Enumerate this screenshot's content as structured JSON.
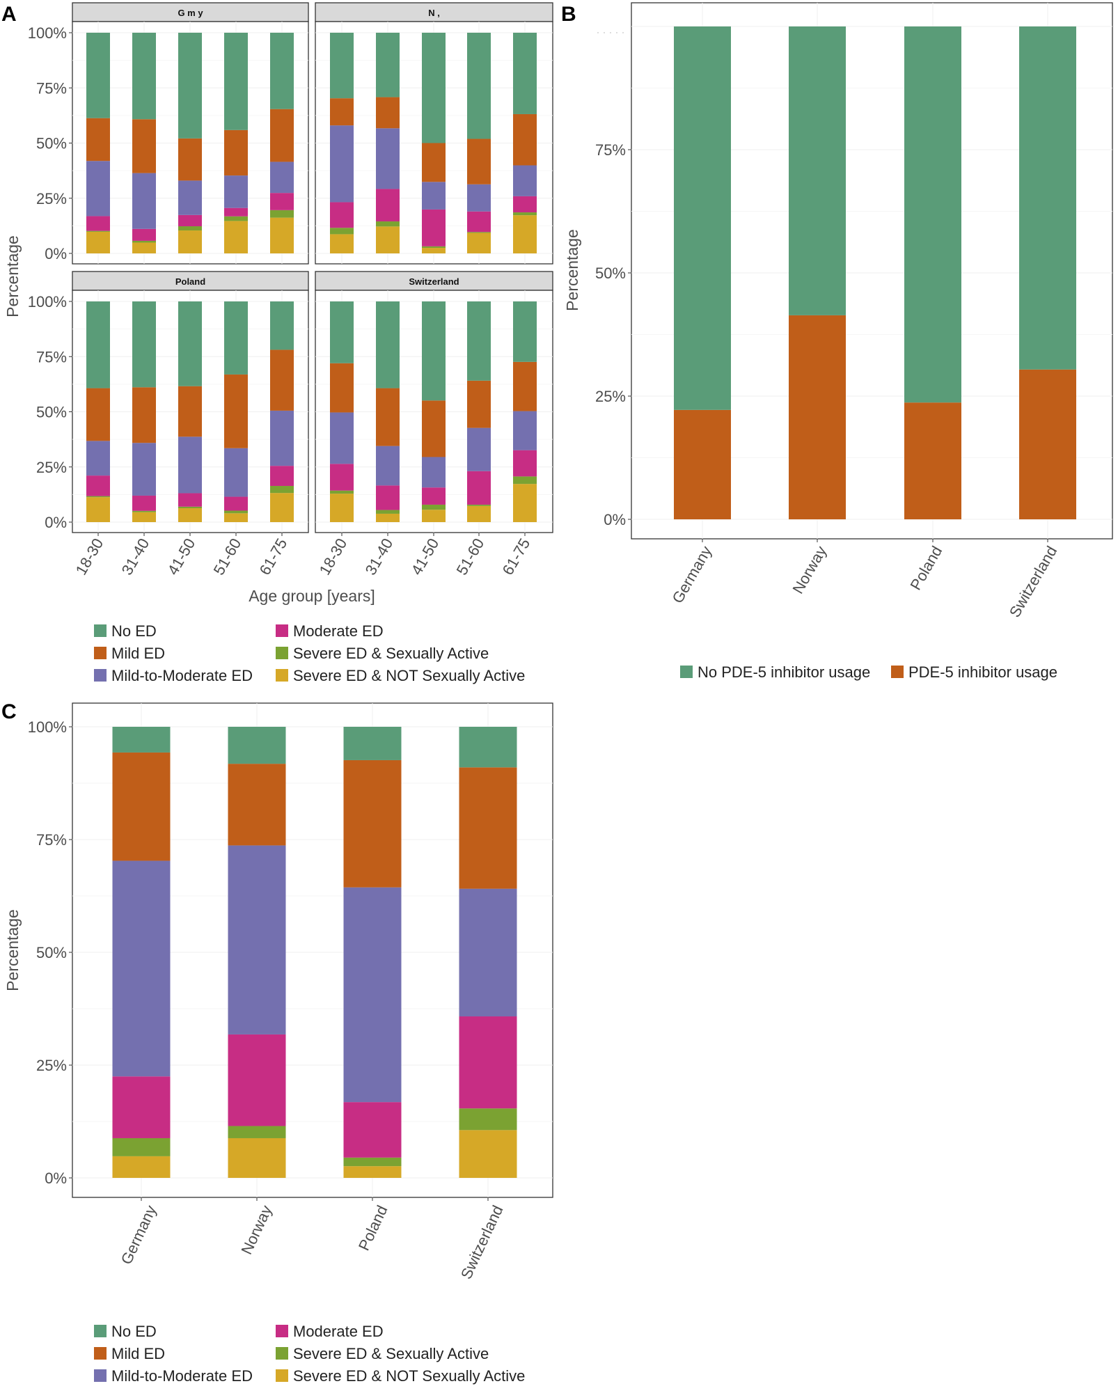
{
  "chart_data": [
    {
      "panel_label": "A",
      "type": "bar",
      "stacked": true,
      "xlabel": "Age group [years]",
      "ylabel": "Percentage",
      "ylim": [
        0,
        100
      ],
      "yticks": [
        "0%",
        "25%",
        "50%",
        "75%",
        "100%"
      ],
      "grid": true,
      "legend_position": "bottom",
      "categories": [
        "18-30",
        "31-40",
        "41-50",
        "51-60",
        "61-75"
      ],
      "facets": [
        {
          "label": "G m y",
          "series": [
            {
              "name": "Severe ED & NOT Sexually Active",
              "color": "#D6A827",
              "values": [
                9.8,
                4.9,
                10.4,
                14.7,
                16.2
              ]
            },
            {
              "name": "Severe ED & Sexually Active",
              "color": "#7BA232",
              "values": [
                0.4,
                0.8,
                1.9,
                2.1,
                3.4
              ]
            },
            {
              "name": "Moderate ED",
              "color": "#C72D84",
              "values": [
                6.7,
                5.4,
                5.1,
                3.8,
                7.8
              ]
            },
            {
              "name": "Mild-to-Moderate ED",
              "color": "#7470AF",
              "values": [
                25.0,
                25.3,
                15.6,
                14.7,
                14.1
              ]
            },
            {
              "name": "Mild ED",
              "color": "#C05E19",
              "values": [
                19.4,
                24.4,
                19.1,
                20.6,
                23.9
              ]
            },
            {
              "name": "No ED",
              "color": "#5A9C78",
              "values": [
                38.7,
                39.2,
                47.9,
                44.1,
                34.6
              ]
            }
          ]
        },
        {
          "label": "N ,",
          "series": [
            {
              "name": "Severe ED & NOT Sexually Active",
              "color": "#D6A827",
              "values": [
                8.7,
                12.2,
                2.5,
                9.3,
                17.3
              ]
            },
            {
              "name": "Severe ED & Sexually Active",
              "color": "#7BA232",
              "values": [
                2.9,
                2.3,
                0.7,
                0.4,
                1.3
              ]
            },
            {
              "name": "Moderate ED",
              "color": "#C72D84",
              "values": [
                11.6,
                14.7,
                16.7,
                9.3,
                7.3
              ]
            },
            {
              "name": "Mild-to-Moderate ED",
              "color": "#7470AF",
              "values": [
                34.8,
                27.5,
                12.5,
                12.3,
                14.0
              ]
            },
            {
              "name": "Mild ED",
              "color": "#C05E19",
              "values": [
                12.3,
                14.1,
                17.6,
                20.6,
                23.2
              ]
            },
            {
              "name": "No ED",
              "color": "#5A9C78",
              "values": [
                29.7,
                29.2,
                50.0,
                48.1,
                36.9
              ]
            }
          ]
        },
        {
          "label": "Poland",
          "series": [
            {
              "name": "Severe ED & NOT Sexually Active",
              "color": "#D6A827",
              "values": [
                11.3,
                4.5,
                6.3,
                4.0,
                13.2
              ]
            },
            {
              "name": "Severe ED & Sexually Active",
              "color": "#7BA232",
              "values": [
                0.5,
                0.6,
                0.7,
                1.2,
                3.2
              ]
            },
            {
              "name": "Moderate ED",
              "color": "#C72D84",
              "values": [
                9.3,
                6.9,
                6.1,
                6.3,
                9.1
              ]
            },
            {
              "name": "Mild-to-Moderate ED",
              "color": "#7470AF",
              "values": [
                15.7,
                23.9,
                25.6,
                22.0,
                25.0
              ]
            },
            {
              "name": "Mild ED",
              "color": "#C05E19",
              "values": [
                23.9,
                25.2,
                22.9,
                33.4,
                27.6
              ]
            },
            {
              "name": "No ED",
              "color": "#5A9C78",
              "values": [
                39.3,
                38.9,
                38.4,
                33.1,
                21.9
              ]
            }
          ]
        },
        {
          "label": "Switzerland",
          "series": [
            {
              "name": "Severe ED & NOT Sexually Active",
              "color": "#D6A827",
              "values": [
                12.9,
                3.8,
                5.6,
                7.3,
                17.3
              ]
            },
            {
              "name": "Severe ED & Sexually Active",
              "color": "#7BA232",
              "values": [
                1.4,
                1.7,
                2.3,
                0.6,
                3.4
              ]
            },
            {
              "name": "Moderate ED",
              "color": "#C72D84",
              "values": [
                12.1,
                11.1,
                7.8,
                15.2,
                11.9
              ]
            },
            {
              "name": "Mild-to-Moderate ED",
              "color": "#7470AF",
              "values": [
                23.3,
                17.9,
                13.8,
                19.6,
                17.7
              ]
            },
            {
              "name": "Mild ED",
              "color": "#C05E19",
              "values": [
                22.3,
                26.2,
                25.6,
                21.4,
                22.3
              ]
            },
            {
              "name": "No ED",
              "color": "#5A9C78",
              "values": [
                28.0,
                39.3,
                44.9,
                35.9,
                27.4
              ]
            }
          ]
        }
      ],
      "legend": [
        {
          "label": "No ED",
          "color": "#5A9C78"
        },
        {
          "label": "Mild ED",
          "color": "#C05E19"
        },
        {
          "label": "Mild-to-Moderate ED",
          "color": "#7470AF"
        },
        {
          "label": "Moderate ED",
          "color": "#C72D84"
        },
        {
          "label": "Severe ED & Sexually Active",
          "color": "#7BA232"
        },
        {
          "label": "Severe ED & NOT Sexually Active",
          "color": "#D6A827"
        }
      ]
    },
    {
      "panel_label": "B",
      "type": "bar",
      "stacked": true,
      "xlabel": "",
      "ylabel": "Percentage",
      "ylim": [
        0,
        100
      ],
      "yticks": [
        "0%",
        "25%",
        "50%",
        "75%"
      ],
      "grid": true,
      "legend_position": "bottom",
      "categories": [
        "Germany",
        "Norway",
        "Poland",
        "Switzerland"
      ],
      "series": [
        {
          "name": "PDE-5 inhibitor usage",
          "color": "#C05E19",
          "values": [
            22.2,
            41.4,
            23.7,
            30.4
          ]
        },
        {
          "name": "No PDE-5 inhibitor usage",
          "color": "#5A9C78",
          "values": [
            77.8,
            58.6,
            76.3,
            69.6
          ]
        }
      ],
      "legend": [
        {
          "label": "No PDE-5 inhibitor usage",
          "color": "#5A9C78"
        },
        {
          "label": "PDE-5 inhibitor usage",
          "color": "#C05E19"
        }
      ]
    },
    {
      "panel_label": "C",
      "type": "bar",
      "stacked": true,
      "xlabel": "",
      "ylabel": "Percentage",
      "ylim": [
        0,
        100
      ],
      "yticks": [
        "0%",
        "25%",
        "50%",
        "75%",
        "100%"
      ],
      "grid": true,
      "legend_position": "bottom",
      "categories": [
        "Germany",
        "Norway",
        "Poland",
        "Switzerland"
      ],
      "series": [
        {
          "name": "Severe ED & NOT Sexually Active",
          "color": "#D6A827",
          "values": [
            4.8,
            8.8,
            2.6,
            10.6
          ]
        },
        {
          "name": "Severe ED & Sexually Active",
          "color": "#7BA232",
          "values": [
            4.0,
            2.7,
            1.9,
            4.8
          ]
        },
        {
          "name": "Moderate ED",
          "color": "#C72D84",
          "values": [
            13.7,
            20.3,
            12.3,
            20.4
          ]
        },
        {
          "name": "Mild-to-Moderate ED",
          "color": "#7470AF",
          "values": [
            47.8,
            41.9,
            47.6,
            28.3
          ]
        },
        {
          "name": "Mild ED",
          "color": "#C05E19",
          "values": [
            24.0,
            18.1,
            28.2,
            26.9
          ]
        },
        {
          "name": "No ED",
          "color": "#5A9C78",
          "values": [
            5.7,
            8.2,
            7.4,
            9.0
          ]
        }
      ],
      "legend": [
        {
          "label": "No ED",
          "color": "#5A9C78"
        },
        {
          "label": "Mild ED",
          "color": "#C05E19"
        },
        {
          "label": "Mild-to-Moderate ED",
          "color": "#7470AF"
        },
        {
          "label": "Moderate ED",
          "color": "#C72D84"
        },
        {
          "label": "Severe ED & Sexually Active",
          "color": "#7BA232"
        },
        {
          "label": "Severe ED & NOT Sexually Active",
          "color": "#D6A827"
        }
      ]
    }
  ]
}
